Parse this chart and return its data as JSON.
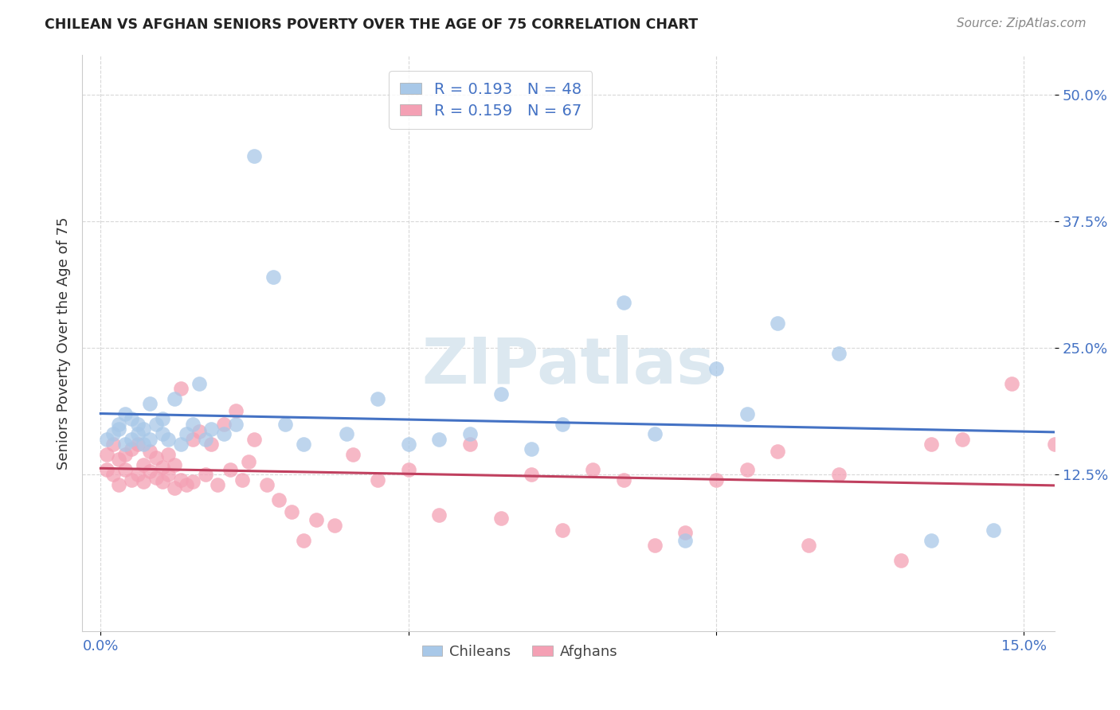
{
  "title": "CHILEAN VS AFGHAN SENIORS POVERTY OVER THE AGE OF 75 CORRELATION CHART",
  "source": "Source: ZipAtlas.com",
  "ylabel": "Seniors Poverty Over the Age of 75",
  "xlabel": "",
  "xlim": [
    -0.003,
    0.155
  ],
  "ylim": [
    -0.03,
    0.54
  ],
  "xtick_positions": [
    0.0,
    0.05,
    0.1,
    0.15
  ],
  "xticklabels": [
    "0.0%",
    "",
    "",
    "15.0%"
  ],
  "ytick_positions": [
    0.125,
    0.25,
    0.375,
    0.5
  ],
  "yticklabels": [
    "12.5%",
    "25.0%",
    "37.5%",
    "50.0%"
  ],
  "chilean_R": 0.193,
  "chilean_N": 48,
  "afghan_R": 0.159,
  "afghan_N": 67,
  "chilean_color": "#a8c8e8",
  "afghan_color": "#f4a0b4",
  "chilean_line_color": "#4472c4",
  "afghan_line_color": "#c0405f",
  "watermark": "ZIPatlas",
  "background_color": "#ffffff",
  "chilean_x": [
    0.001,
    0.002,
    0.003,
    0.003,
    0.004,
    0.004,
    0.005,
    0.005,
    0.006,
    0.006,
    0.007,
    0.007,
    0.008,
    0.008,
    0.009,
    0.01,
    0.01,
    0.011,
    0.012,
    0.013,
    0.014,
    0.015,
    0.016,
    0.017,
    0.018,
    0.02,
    0.022,
    0.025,
    0.028,
    0.03,
    0.033,
    0.04,
    0.045,
    0.05,
    0.055,
    0.06,
    0.065,
    0.07,
    0.075,
    0.085,
    0.09,
    0.095,
    0.1,
    0.105,
    0.11,
    0.12,
    0.135,
    0.145
  ],
  "chilean_y": [
    0.16,
    0.165,
    0.17,
    0.175,
    0.155,
    0.185,
    0.16,
    0.18,
    0.165,
    0.175,
    0.155,
    0.17,
    0.195,
    0.16,
    0.175,
    0.165,
    0.18,
    0.16,
    0.2,
    0.155,
    0.165,
    0.175,
    0.215,
    0.16,
    0.17,
    0.165,
    0.175,
    0.44,
    0.32,
    0.175,
    0.155,
    0.165,
    0.2,
    0.155,
    0.16,
    0.165,
    0.205,
    0.15,
    0.175,
    0.295,
    0.165,
    0.06,
    0.23,
    0.185,
    0.275,
    0.245,
    0.06,
    0.07
  ],
  "afghan_x": [
    0.001,
    0.001,
    0.002,
    0.002,
    0.003,
    0.003,
    0.004,
    0.004,
    0.005,
    0.005,
    0.006,
    0.006,
    0.007,
    0.007,
    0.008,
    0.008,
    0.009,
    0.009,
    0.01,
    0.01,
    0.011,
    0.011,
    0.012,
    0.012,
    0.013,
    0.013,
    0.014,
    0.015,
    0.015,
    0.016,
    0.017,
    0.018,
    0.019,
    0.02,
    0.021,
    0.022,
    0.023,
    0.024,
    0.025,
    0.027,
    0.029,
    0.031,
    0.033,
    0.035,
    0.038,
    0.041,
    0.045,
    0.05,
    0.055,
    0.06,
    0.065,
    0.07,
    0.075,
    0.08,
    0.085,
    0.09,
    0.095,
    0.1,
    0.105,
    0.11,
    0.115,
    0.12,
    0.13,
    0.135,
    0.14,
    0.148,
    0.155
  ],
  "afghan_y": [
    0.13,
    0.145,
    0.125,
    0.155,
    0.115,
    0.14,
    0.13,
    0.145,
    0.12,
    0.15,
    0.125,
    0.155,
    0.118,
    0.135,
    0.128,
    0.148,
    0.122,
    0.142,
    0.118,
    0.132,
    0.125,
    0.145,
    0.112,
    0.135,
    0.12,
    0.21,
    0.115,
    0.16,
    0.118,
    0.168,
    0.125,
    0.155,
    0.115,
    0.175,
    0.13,
    0.188,
    0.12,
    0.138,
    0.16,
    0.115,
    0.1,
    0.088,
    0.06,
    0.08,
    0.075,
    0.145,
    0.12,
    0.13,
    0.085,
    0.155,
    0.082,
    0.125,
    0.07,
    0.13,
    0.12,
    0.055,
    0.068,
    0.12,
    0.13,
    0.148,
    0.055,
    0.125,
    0.04,
    0.155,
    0.16,
    0.215,
    0.155
  ]
}
